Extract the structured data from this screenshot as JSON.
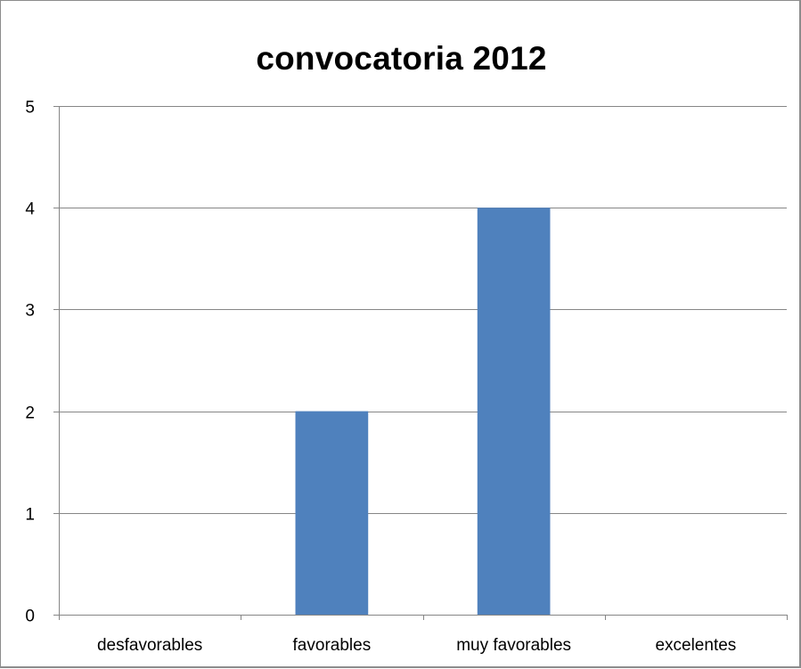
{
  "chart_data": {
    "type": "bar",
    "title": "convocatoria 2012",
    "categories": [
      "desfavorables",
      "favorables",
      "muy favorables",
      "excelentes"
    ],
    "values": [
      0,
      2,
      4,
      0
    ],
    "ylim": [
      0,
      5
    ],
    "yticks": [
      "0",
      "1",
      "2",
      "3",
      "4",
      "5"
    ],
    "xlabel": "",
    "ylabel": "",
    "grid": true,
    "legend": "none",
    "bar_color": "#4f81bd",
    "grid_color": "#868686"
  }
}
